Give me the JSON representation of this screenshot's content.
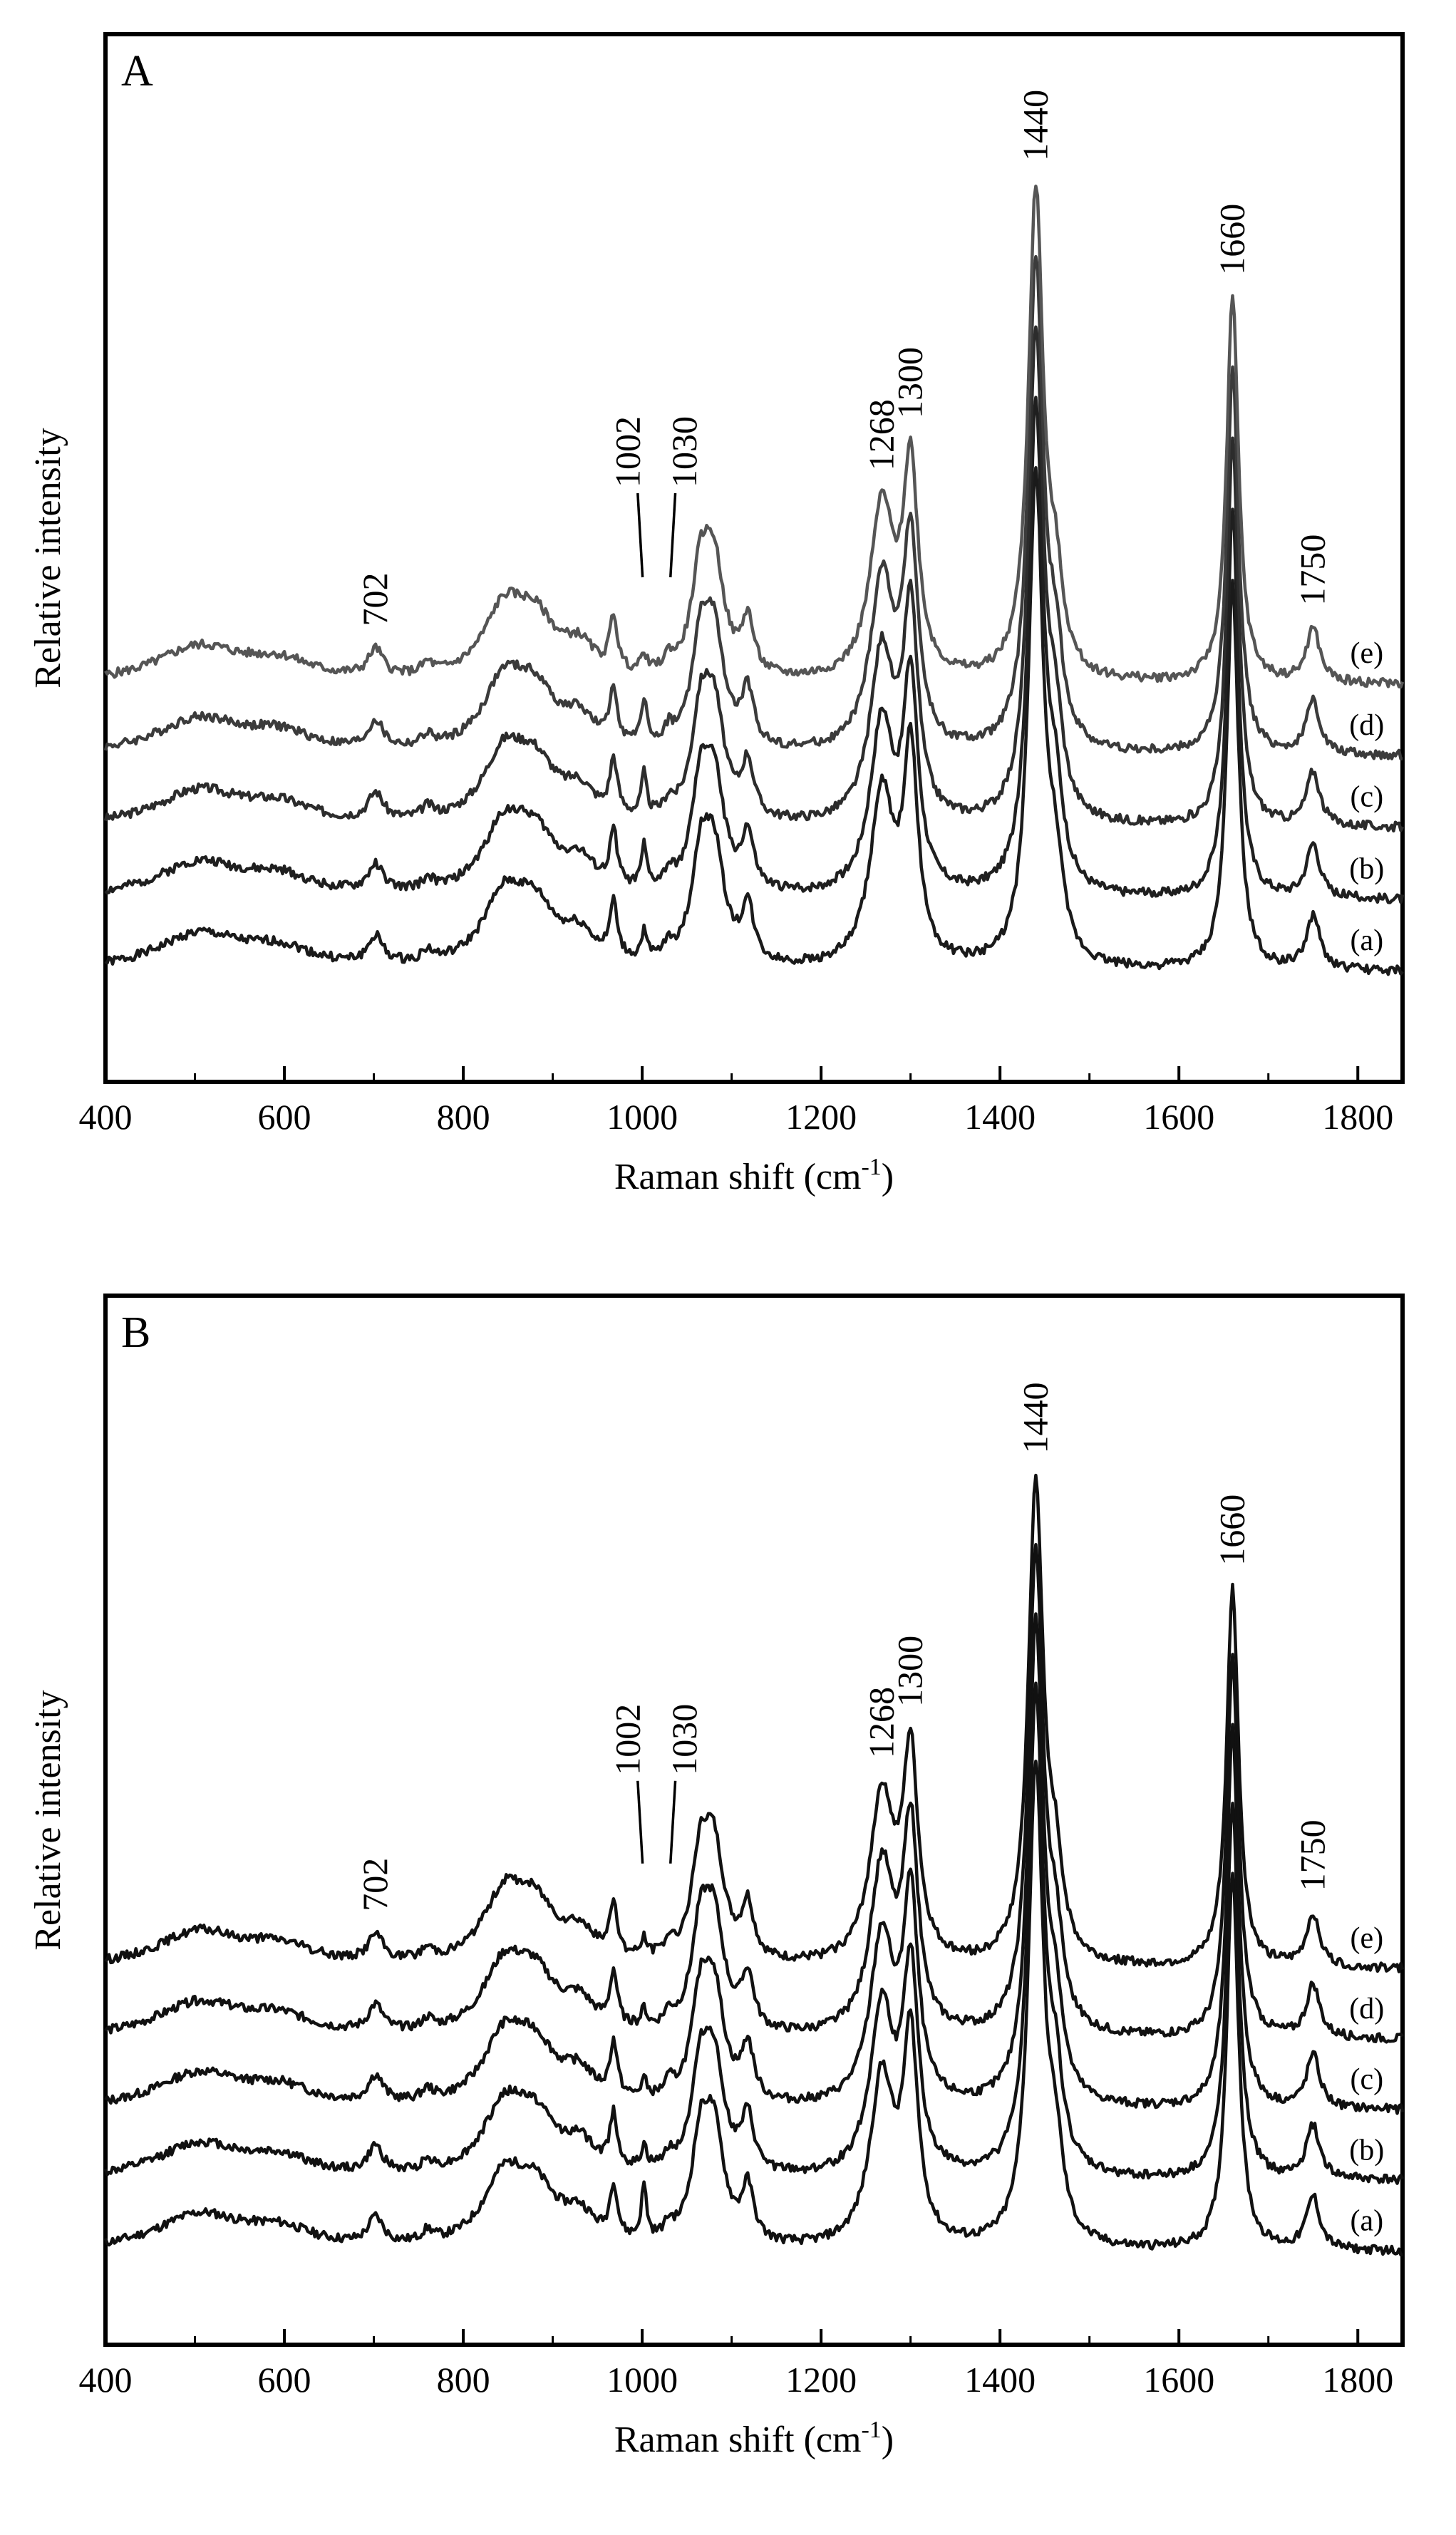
{
  "chart_data": [
    {
      "panel_label": "A",
      "type": "line",
      "xlabel": "Raman shift (cm",
      "xlabel_sup": "-1",
      "xlabel_close": ")",
      "ylabel": "Relative intensity",
      "xlim": [
        400,
        1850
      ],
      "ylim": [
        0,
        1
      ],
      "xticks": [
        400,
        600,
        800,
        1000,
        1200,
        1400,
        1600,
        1800
      ],
      "xtick_labels": [
        "400",
        "600",
        "800",
        "1000",
        "1200",
        "1400",
        "1600",
        "1800"
      ],
      "peak_labels": [
        {
          "text": "702",
          "x": 702
        },
        {
          "text": "1002",
          "x": 1002
        },
        {
          "text": "1030",
          "x": 1030
        },
        {
          "text": "1268",
          "x": 1268
        },
        {
          "text": "1300",
          "x": 1300
        },
        {
          "text": "1440",
          "x": 1440
        },
        {
          "text": "1660",
          "x": 1660
        },
        {
          "text": "1750",
          "x": 1750
        }
      ],
      "series": [
        {
          "name": "(a)",
          "offset": 0.06,
          "scale": 1.0,
          "color": "#1a1a1a",
          "seed": 1,
          "p1002": 0.03
        },
        {
          "name": "(b)",
          "offset": 0.14,
          "scale": 1.0,
          "color": "#1f1f1f",
          "seed": 2,
          "p1002": 0.045
        },
        {
          "name": "(c)",
          "offset": 0.22,
          "scale": 1.0,
          "color": "#2c2c2c",
          "seed": 3,
          "p1002": 0.045
        },
        {
          "name": "(d)",
          "offset": 0.3,
          "scale": 1.0,
          "color": "#3b3b3b",
          "seed": 4,
          "p1002": 0.05
        },
        {
          "name": "(e)",
          "offset": 0.38,
          "scale": 1.0,
          "color": "#555555",
          "seed": 5,
          "p1002": 0.02
        }
      ]
    },
    {
      "panel_label": "B",
      "type": "line",
      "xlabel": "Raman shift (cm",
      "xlabel_sup": "-1",
      "xlabel_close": ")",
      "ylabel": "Relative intensity",
      "xlim": [
        400,
        1850
      ],
      "ylim": [
        0,
        1
      ],
      "xticks": [
        400,
        600,
        800,
        1000,
        1200,
        1400,
        1600,
        1800
      ],
      "xtick_labels": [
        "400",
        "600",
        "800",
        "1000",
        "1200",
        "1400",
        "1600",
        "1800"
      ],
      "peak_labels": [
        {
          "text": "702",
          "x": 702
        },
        {
          "text": "1002",
          "x": 1002
        },
        {
          "text": "1030",
          "x": 1030
        },
        {
          "text": "1268",
          "x": 1268
        },
        {
          "text": "1300",
          "x": 1300
        },
        {
          "text": "1440",
          "x": 1440
        },
        {
          "text": "1660",
          "x": 1660
        },
        {
          "text": "1750",
          "x": 1750
        }
      ],
      "series": [
        {
          "name": "(a)",
          "offset": 0.04,
          "scale": 1.0,
          "color": "#111111",
          "seed": 11,
          "p1002": 0.06
        },
        {
          "name": "(b)",
          "offset": 0.12,
          "scale": 1.0,
          "color": "#111111",
          "seed": 12,
          "p1002": 0.025
        },
        {
          "name": "(c)",
          "offset": 0.2,
          "scale": 1.0,
          "color": "#111111",
          "seed": 13,
          "p1002": 0.02
        },
        {
          "name": "(d)",
          "offset": 0.28,
          "scale": 1.0,
          "color": "#111111",
          "seed": 14,
          "p1002": 0.02
        },
        {
          "name": "(e)",
          "offset": 0.36,
          "scale": 1.0,
          "color": "#111111",
          "seed": 15,
          "p1002": 0.02
        }
      ]
    }
  ]
}
